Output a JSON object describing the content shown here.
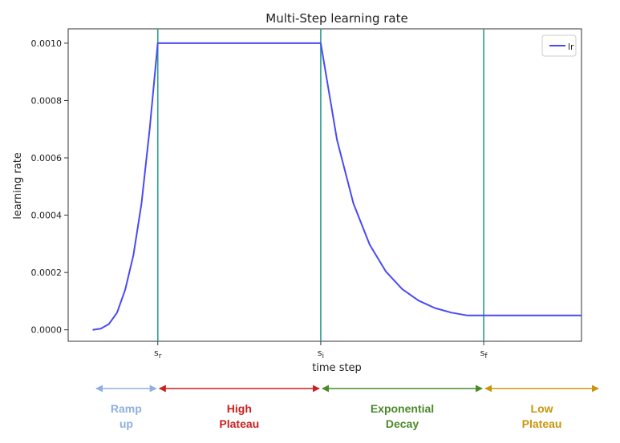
{
  "chart_data": {
    "type": "line",
    "title": "Multi-Step learning rate",
    "xlabel": "time step",
    "ylabel": "learning rate",
    "ylim": [
      -4e-05,
      0.00105
    ],
    "yticks": [
      0.0,
      0.0002,
      0.0004,
      0.0006,
      0.0008,
      0.001
    ],
    "ytick_labels": [
      "0.0000",
      "0.0002",
      "0.0004",
      "0.0006",
      "0.0008",
      "0.0010"
    ],
    "xlim": [
      -0.15,
      3.0
    ],
    "xticks": [
      {
        "x": 0.4,
        "base": "s",
        "sub": "r"
      },
      {
        "x": 1.4,
        "base": "s",
        "sub": "i"
      },
      {
        "x": 2.4,
        "base": "s",
        "sub": "f"
      }
    ],
    "vlines": [
      0.4,
      1.4,
      2.4
    ],
    "vline_color": "#2a9d8f",
    "legend": {
      "label": "lr",
      "location": "top-right"
    },
    "series": [
      {
        "name": "lr",
        "color": "#4a4af5",
        "x": [
          0.0,
          0.05,
          0.1,
          0.15,
          0.2,
          0.25,
          0.3,
          0.35,
          0.4,
          0.6,
          0.8,
          1.0,
          1.2,
          1.4,
          1.5,
          1.6,
          1.7,
          1.8,
          1.9,
          2.0,
          2.1,
          2.2,
          2.3,
          2.4,
          2.6,
          2.8,
          3.0
        ],
        "y": [
          0.0,
          4e-06,
          2e-05,
          6e-05,
          0.00014,
          0.00026,
          0.00044,
          0.0007,
          0.001,
          0.001,
          0.001,
          0.001,
          0.001,
          0.001,
          0.000662,
          0.000441,
          0.000297,
          0.000203,
          0.000142,
          0.000102,
          7.6e-05,
          6e-05,
          5e-05,
          5e-05,
          5e-05,
          5e-05,
          5e-05
        ]
      }
    ],
    "phases": [
      {
        "label_lines": [
          "Ramp",
          "up"
        ],
        "color": "#8fb0e0",
        "start": -0.05,
        "end": 0.4
      },
      {
        "label_lines": [
          "High",
          "Plateau"
        ],
        "color": "#cc1f1f",
        "start": 0.4,
        "end": 1.4
      },
      {
        "label_lines": [
          "Exponential",
          "Decay"
        ],
        "color": "#4a8a2a",
        "start": 1.4,
        "end": 2.4
      },
      {
        "label_lines": [
          "Low",
          "Plateau"
        ],
        "color": "#c9950c",
        "start": 2.4,
        "end": 3.2
      }
    ]
  }
}
